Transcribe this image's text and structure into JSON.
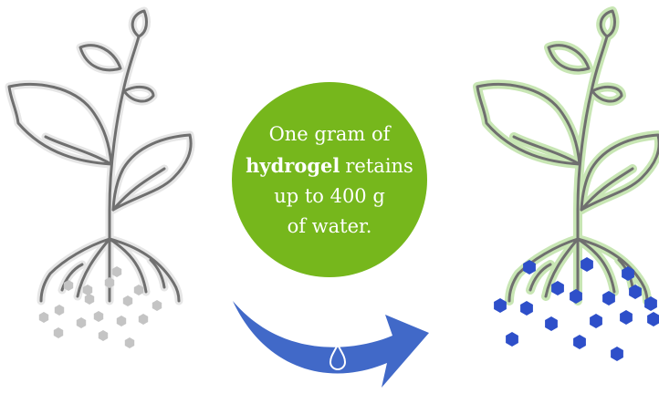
{
  "infographic": {
    "text": {
      "line1": "One gram of",
      "emphasis": "hydrogel",
      "line2_rest": "retains",
      "line3": "up to 400 g",
      "line4": "of water."
    }
  }
}
